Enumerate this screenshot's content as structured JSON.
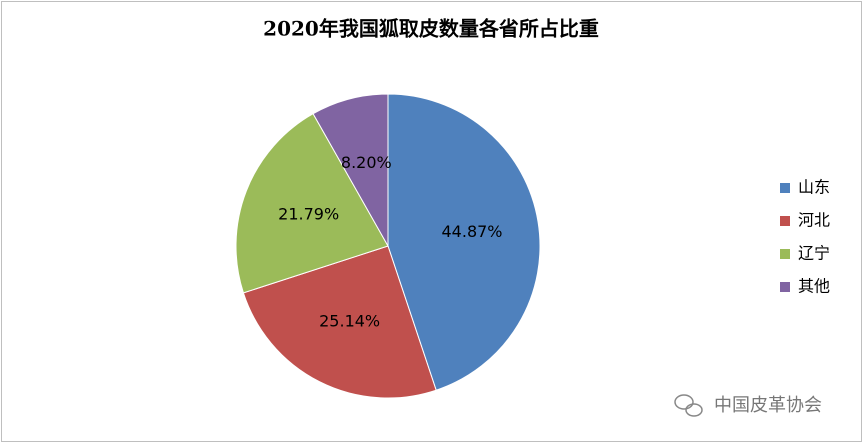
{
  "chart_data": {
    "type": "pie",
    "title": "2020年我国狐取皮数量各省所占比重",
    "categories": [
      "山东",
      "河北",
      "辽宁",
      "其他"
    ],
    "values": [
      44.87,
      25.14,
      21.79,
      8.2
    ],
    "value_labels": [
      "44.87%",
      "25.14%",
      "21.79%",
      "8.20%"
    ],
    "colors": [
      "#4f81bd",
      "#c0504d",
      "#9bbb59",
      "#8064a2"
    ],
    "legend": "right"
  },
  "watermark": "中国皮革协会"
}
